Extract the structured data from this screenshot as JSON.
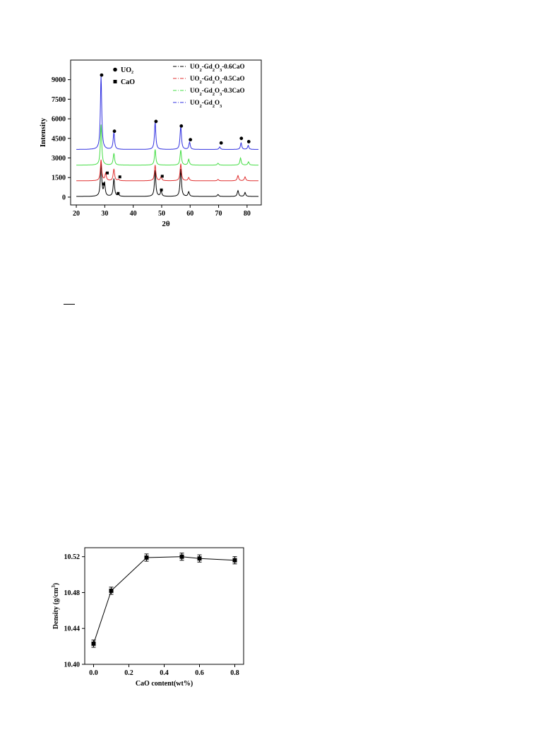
{
  "chart_data": [
    {
      "type": "line",
      "xlabel": "2θ",
      "ylabel": "Intensity",
      "xlim": [
        18,
        85
      ],
      "ylim": [
        -600,
        10500
      ],
      "x_ticks": [
        "20",
        "30",
        "40",
        "50",
        "60",
        "70",
        "80"
      ],
      "y_ticks": [
        "0",
        "1500",
        "3000",
        "4500",
        "6000",
        "7500",
        "9000"
      ],
      "phase_legend": [
        {
          "symbol": "circle",
          "label": "UO₂"
        },
        {
          "symbol": "square",
          "label": "CaO"
        }
      ],
      "series": [
        {
          "name": "UO2-Gd2O3-0.6CaO",
          "color": "#000000",
          "baseline": 50,
          "peaks": [
            [
              28.7,
              2500
            ],
            [
              29.9,
              1000
            ],
            [
              33.2,
              1350
            ],
            [
              34.8,
              150
            ],
            [
              47.7,
              2000
            ],
            [
              49.8,
              400
            ],
            [
              56.7,
              2100
            ],
            [
              59.5,
              350
            ],
            [
              69.8,
              150
            ],
            [
              76.8,
              450
            ],
            [
              79.3,
              300
            ]
          ]
        },
        {
          "name": "UO2-Gd2O3-0.5CaO",
          "color": "#e03030",
          "baseline": 1250,
          "peaks": [
            [
              28.7,
              1600
            ],
            [
              30.3,
              550
            ],
            [
              33.2,
              900
            ],
            [
              34.8,
              100
            ],
            [
              47.7,
              1200
            ],
            [
              49.8,
              300
            ],
            [
              56.7,
              1300
            ],
            [
              59.5,
              250
            ],
            [
              69.8,
              100
            ],
            [
              76.8,
              400
            ],
            [
              79.3,
              300
            ]
          ]
        },
        {
          "name": "UO2-Gd2O3-0.3CaO",
          "color": "#44dd44",
          "baseline": 2450,
          "peaks": [
            [
              28.7,
              3100
            ],
            [
              33.2,
              900
            ],
            [
              47.7,
              1200
            ],
            [
              56.7,
              1150
            ],
            [
              59.5,
              450
            ],
            [
              69.8,
              150
            ],
            [
              77.7,
              550
            ],
            [
              80.5,
              250
            ]
          ]
        },
        {
          "name": "UO2-Gd2O3",
          "color": "#3030e0",
          "baseline": 3650,
          "peaks": [
            [
              28.7,
              5600
            ],
            [
              33.2,
              1300
            ],
            [
              47.7,
              2100
            ],
            [
              56.7,
              1800
            ],
            [
              59.8,
              550
            ],
            [
              70.4,
              200
            ],
            [
              77.9,
              500
            ],
            [
              80.4,
              300
            ]
          ]
        }
      ],
      "annotations": [
        {
          "symbol": "circle",
          "x": 28.9,
          "y": 9350
        },
        {
          "symbol": "circle",
          "x": 33.4,
          "y": 5050
        },
        {
          "symbol": "circle",
          "x": 48.0,
          "y": 5800
        },
        {
          "symbol": "circle",
          "x": 56.9,
          "y": 5450
        },
        {
          "symbol": "circle",
          "x": 60.1,
          "y": 4400
        },
        {
          "symbol": "circle",
          "x": 70.9,
          "y": 4150
        },
        {
          "symbol": "circle",
          "x": 78.0,
          "y": 4500
        },
        {
          "symbol": "circle",
          "x": 80.6,
          "y": 4250
        },
        {
          "symbol": "square",
          "x": 30.9,
          "y": 1850
        },
        {
          "symbol": "square",
          "x": 35.3,
          "y": 1550
        },
        {
          "symbol": "square",
          "x": 50.2,
          "y": 1600
        },
        {
          "symbol": "square",
          "x": 29.6,
          "y": 1000
        },
        {
          "symbol": "square",
          "x": 34.7,
          "y": 280
        },
        {
          "symbol": "square",
          "x": 49.9,
          "y": 550
        }
      ]
    },
    {
      "type": "line",
      "xlabel": "CaO content(wt%)",
      "ylabel": "Density (g/cm3)",
      "xlim": [
        -0.05,
        0.85
      ],
      "ylim": [
        10.4,
        10.53
      ],
      "x_ticks": [
        "0.0",
        "0.2",
        "0.4",
        "0.6",
        "0.8"
      ],
      "y_ticks": [
        "10.40",
        "10.44",
        "10.48",
        "10.52"
      ],
      "series": [
        {
          "name": "",
          "x": [
            0.0,
            0.1,
            0.3,
            0.5,
            0.6,
            0.8
          ],
          "values": [
            10.423,
            10.482,
            10.519,
            10.52,
            10.518,
            10.516
          ],
          "errors": [
            0.004,
            0.004,
            0.004,
            0.004,
            0.004,
            0.004
          ]
        }
      ]
    }
  ]
}
